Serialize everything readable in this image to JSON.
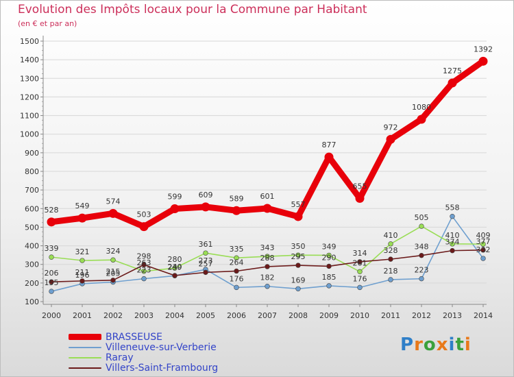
{
  "chart_data": {
    "type": "line",
    "title": "Evolution des Impôts locaux pour la Commune par Habitant",
    "subtitle": "(en € et par an)",
    "xlabel": "",
    "ylabel": "",
    "categories": [
      "2000",
      "2001",
      "2002",
      "2003",
      "2004",
      "2005",
      "2006",
      "2007",
      "2008",
      "2009",
      "2010",
      "2011",
      "2012",
      "2013",
      "2014"
    ],
    "ylim": [
      100,
      1500
    ],
    "yticks": [
      "100",
      "200",
      "300",
      "400",
      "500",
      "600",
      "700",
      "800",
      "900",
      "1000",
      "1100",
      "1200",
      "1300",
      "1400",
      "1500"
    ],
    "legend_position": "bottom-left",
    "series": [
      {
        "name": "BRASSEUSE",
        "color": "#e8000a",
        "values": [
          528,
          549,
          574,
          503,
          599,
          609,
          589,
          601,
          557,
          877,
          655,
          972,
          1080,
          1275,
          1392
        ],
        "labels": [
          "528",
          "549",
          "574",
          "503",
          "599",
          "609",
          "589",
          "601",
          "557",
          "877",
          "655",
          "972",
          "1080",
          "1275",
          "1392"
        ]
      },
      {
        "name": "Villeneuve-sur-Verberie",
        "color": "#6e9fcf",
        "values": [
          155,
          196,
          205,
          223,
          239,
          273,
          176,
          182,
          169,
          185,
          176,
          218,
          223,
          558,
          332
        ],
        "labels": [
          "155",
          "196",
          "205",
          "223",
          "239",
          "273",
          "176",
          "182",
          "169",
          "185",
          "176",
          "218",
          "223",
          "558",
          "332"
        ]
      },
      {
        "name": "Raray",
        "color": "#99dd55",
        "values": [
          339,
          321,
          324,
          263,
          280,
          361,
          335,
          343,
          350,
          349,
          261,
          410,
          505,
          410,
          409
        ],
        "labels": [
          "339",
          "321",
          "324",
          "263",
          "280",
          "361",
          "335",
          "343",
          "350",
          "349",
          "261",
          "410",
          "505",
          "410",
          "409"
        ]
      },
      {
        "name": "Villers-Saint-Frambourg",
        "color": "#6b1a1a",
        "values": [
          206,
          211,
          215,
          298,
          240,
          257,
          264,
          288,
          295,
          290,
          314,
          328,
          348,
          374,
          377
        ],
        "labels": [
          "206",
          "211",
          "215",
          "298",
          "240",
          "257",
          "264",
          "288",
          "295",
          "290",
          "314",
          "328",
          "348",
          "374",
          "377"
        ]
      }
    ]
  },
  "logo": {
    "text": "Proxiti",
    "letters": [
      "P",
      "r",
      "o",
      "x",
      "i",
      "t",
      "i"
    ],
    "colors": [
      "#2f7fc8",
      "#e8791a",
      "#3aa13c",
      "#e8791a",
      "#2f7fc8",
      "#3aa13c",
      "#e8791a"
    ]
  }
}
